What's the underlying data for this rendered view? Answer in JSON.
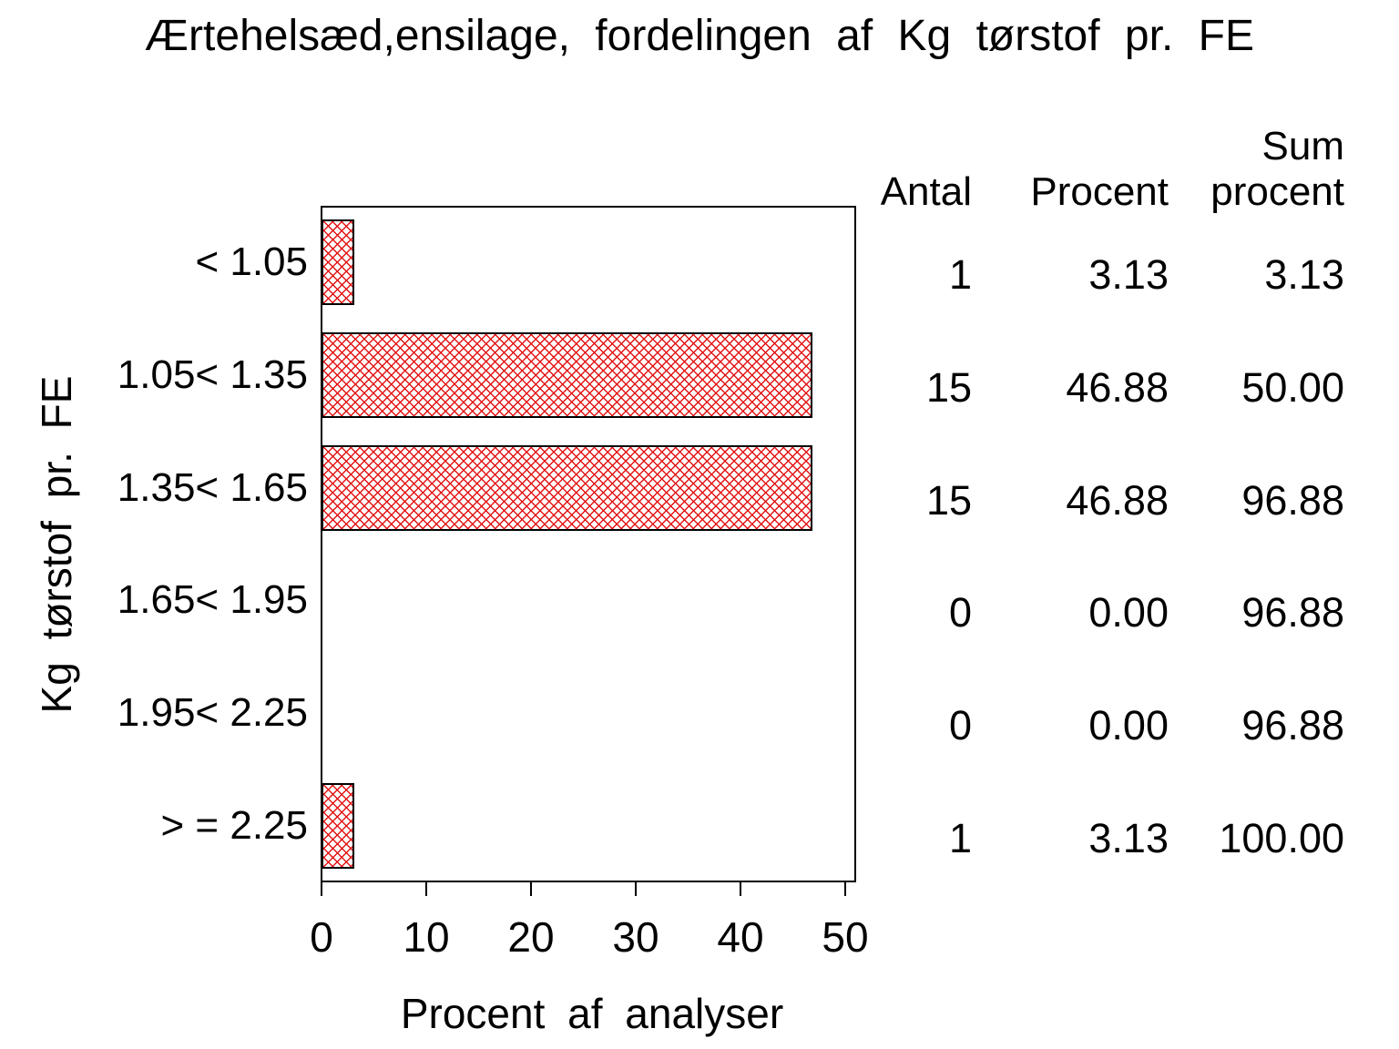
{
  "title": "Ærtehelsæd,ensilage, fordelingen af Kg tørstof pr. FE",
  "colors": {
    "background": "#ffffff",
    "text": "#000000",
    "bar_pattern_red": "#e31414",
    "bar_border": "#000000"
  },
  "chart_data": {
    "type": "bar",
    "orientation": "horizontal",
    "title": "Ærtehelsæd,ensilage, fordelingen af Kg tørstof pr. FE",
    "xlabel": "Procent af analyser",
    "ylabel": "Kg tørstof pr. FE",
    "xlim": [
      0,
      50
    ],
    "x_ticks": [
      "0",
      "10",
      "20",
      "30",
      "40",
      "50"
    ],
    "grid": false,
    "legend": false,
    "bar_fill": "red diagonal crosshatch on white, black outline",
    "categories": [
      "< 1.05",
      "1.05< 1.35",
      "1.35< 1.65",
      "1.65< 1.95",
      "1.95< 2.25",
      "> = 2.25"
    ],
    "values": [
      3.13,
      46.88,
      46.88,
      0,
      0,
      3.13
    ],
    "table": {
      "headers": {
        "antal": "Antal",
        "procent": "Procent",
        "sum_line1": "Sum",
        "sum_line2": "procent"
      },
      "rows": [
        {
          "category": "< 1.05",
          "antal": "1",
          "procent": "3.13",
          "sum": "3.13"
        },
        {
          "category": "1.05< 1.35",
          "antal": "15",
          "procent": "46.88",
          "sum": "50.00"
        },
        {
          "category": "1.35< 1.65",
          "antal": "15",
          "procent": "46.88",
          "sum": "96.88"
        },
        {
          "category": "1.65< 1.95",
          "antal": "0",
          "procent": "0.00",
          "sum": "96.88"
        },
        {
          "category": "1.95< 2.25",
          "antal": "0",
          "procent": "0.00",
          "sum": "96.88"
        },
        {
          "category": "> = 2.25",
          "antal": "1",
          "procent": "3.13",
          "sum": "100.00"
        }
      ]
    }
  }
}
